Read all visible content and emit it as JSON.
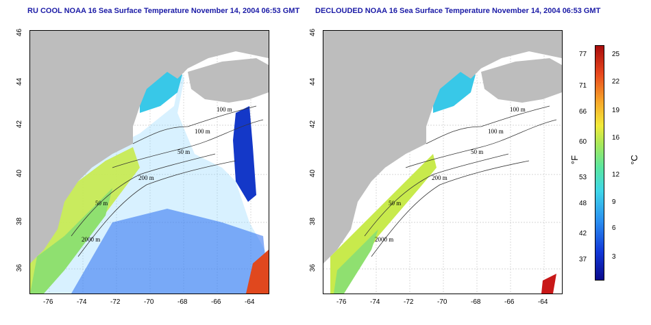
{
  "titles": {
    "left": "RU COOL NOAA 16 Sea Surface Temperature November 14, 2004 06:53 GMT",
    "right": "DECLOUDED NOAA 16 Sea Surface Temperature November 14, 2004 06:53 GMT"
  },
  "axes": {
    "lat_ticks": [
      "46",
      "44",
      "42",
      "40",
      "38",
      "36"
    ],
    "lon_ticks": [
      "-76",
      "-74",
      "-72",
      "-70",
      "-68",
      "-66",
      "-64"
    ]
  },
  "contour_labels": {
    "left": [
      "100 m",
      "100 m",
      "50 m",
      "200 m",
      "50 m",
      "2000 m"
    ],
    "right": [
      "100 m",
      "100 m",
      "50 m",
      "200 m",
      "50 m",
      "2000 m"
    ]
  },
  "colorbar": {
    "fahrenheit_label": "°F",
    "celsius_label": "°C",
    "fahrenheit_ticks": [
      "77",
      "71",
      "66",
      "60",
      "53",
      "48",
      "42",
      "37"
    ],
    "celsius_ticks": [
      "25",
      "22",
      "19",
      "16",
      "12",
      "9",
      "6",
      "3"
    ],
    "colors": [
      "#0a0a8c",
      "#1238d8",
      "#2a8ef0",
      "#3fd6e8",
      "#5ae6a0",
      "#a8e85a",
      "#f2ea3a",
      "#f7a82a",
      "#e8481e",
      "#a80c0c"
    ]
  },
  "colors": {
    "land": "#bdbdbd",
    "title": "#1a1aa6",
    "grid": "#c8c8c8"
  }
}
